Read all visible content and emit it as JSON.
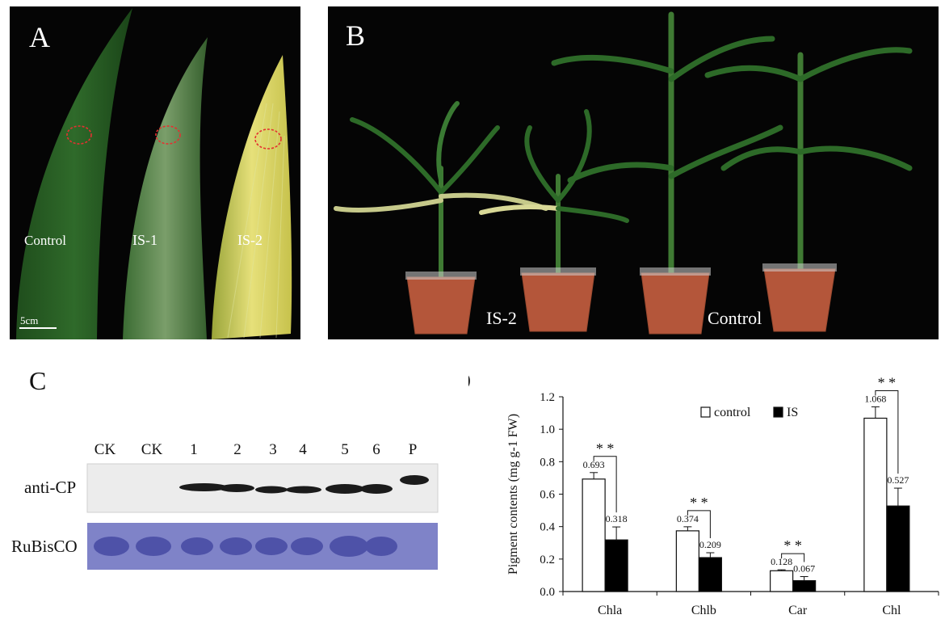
{
  "panels": {
    "A": {
      "label": "A",
      "leaf_labels": [
        "Control",
        "IS-1",
        "IS-2"
      ],
      "scale_bar": "5cm"
    },
    "B": {
      "label": "B",
      "plant_labels": [
        "IS-2",
        "Control"
      ]
    },
    "C": {
      "label": "C",
      "lanes": [
        "CK",
        "CK",
        "1",
        "2",
        "3",
        "4",
        "5",
        "6",
        "P"
      ],
      "rows": [
        "anti-CP",
        "RuBisCO"
      ]
    },
    "D": {
      "label": "D"
    }
  },
  "chart_data": {
    "type": "bar",
    "categories": [
      "Chla",
      "Chlb",
      "Car",
      "Chl"
    ],
    "series": [
      {
        "name": "control",
        "values": [
          0.693,
          0.374,
          0.128,
          1.068
        ],
        "errors": [
          0.04,
          0.025,
          0.006,
          0.07
        ],
        "color": "#ffffff"
      },
      {
        "name": "IS",
        "values": [
          0.318,
          0.209,
          0.067,
          0.527
        ],
        "errors": [
          0.08,
          0.03,
          0.025,
          0.11
        ],
        "color": "#000000"
      }
    ],
    "value_labels": [
      [
        "0.693",
        "0.318"
      ],
      [
        "0.374",
        "0.209"
      ],
      [
        "0.128",
        "0.067"
      ],
      [
        "1.068",
        "0.527"
      ]
    ],
    "significance": [
      "* *",
      "* *",
      "* *",
      "* *"
    ],
    "ylabel": "Pigment contents (mg g-1 FW)",
    "ylim": [
      0,
      1.2
    ],
    "yticks": [
      "0.0",
      "0.2",
      "0.4",
      "0.6",
      "0.8",
      "1.0",
      "1.2"
    ],
    "legend_position": "top-right",
    "grid": false
  }
}
